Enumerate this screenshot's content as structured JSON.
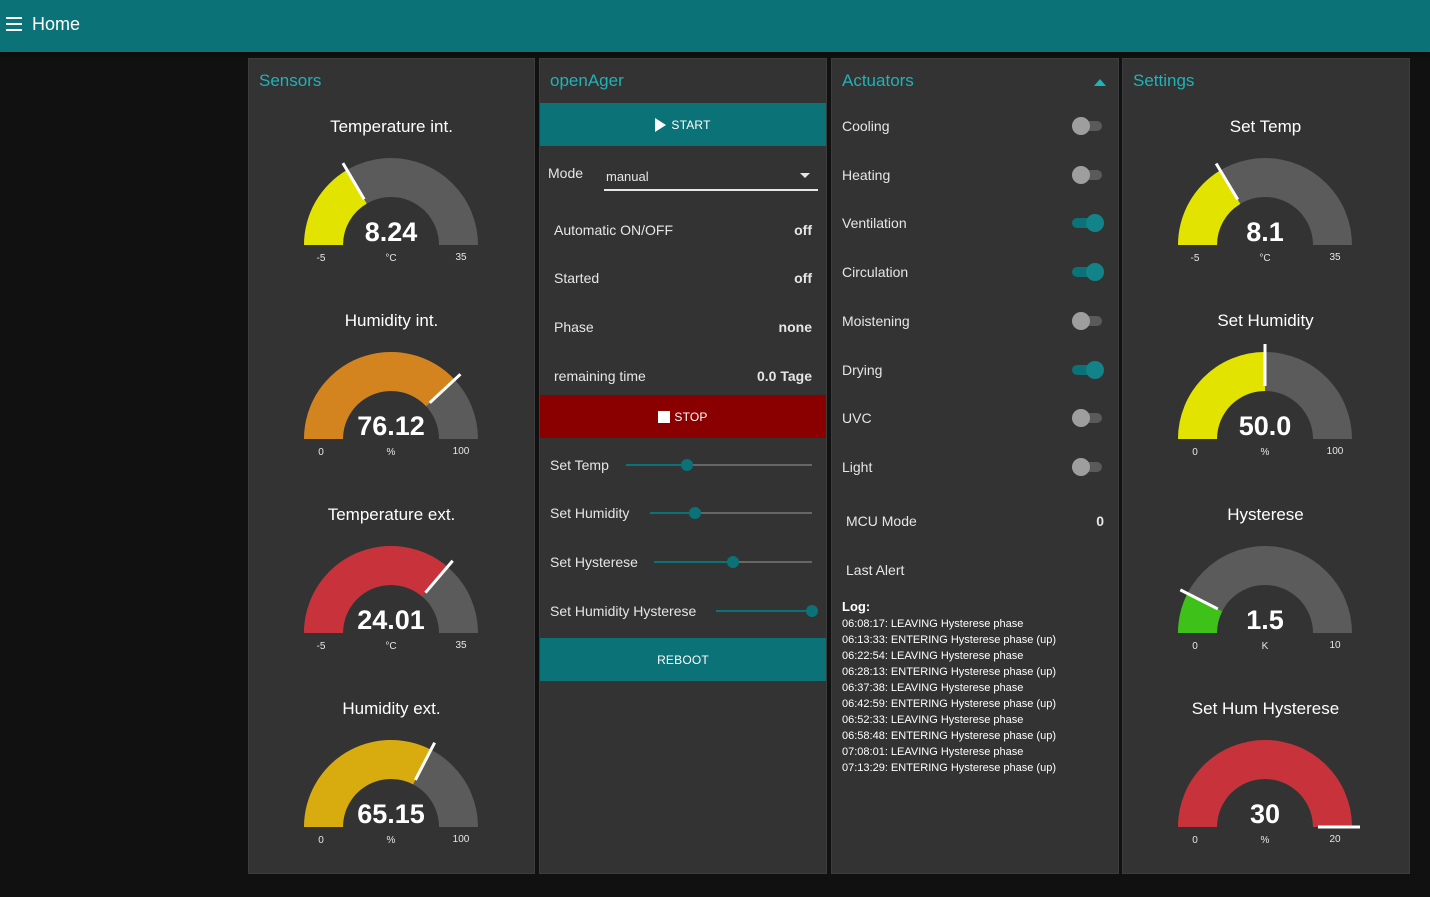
{
  "header": {
    "title": "Home"
  },
  "sensors": {
    "title": "Sensors",
    "gauges": [
      {
        "title": "Temperature int.",
        "value": "8.24",
        "unit": "°C",
        "min": "-5",
        "max": "35",
        "level": 0.331,
        "color": "#e2e400"
      },
      {
        "title": "Humidity int.",
        "value": "76.12",
        "unit": "%",
        "min": "0",
        "max": "100",
        "level": 0.761,
        "color": "#d4841e"
      },
      {
        "title": "Temperature ext.",
        "value": "24.01",
        "unit": "°C",
        "min": "-5",
        "max": "35",
        "level": 0.725,
        "color": "#c8323a"
      },
      {
        "title": "Humidity ext.",
        "value": "65.15",
        "unit": "%",
        "min": "0",
        "max": "100",
        "level": 0.652,
        "color": "#d8ac0e"
      }
    ]
  },
  "openager": {
    "title": "openAger",
    "start_label": "START",
    "mode_label": "Mode",
    "mode_value": "manual",
    "rows": [
      {
        "label": "Automatic ON/OFF",
        "value": "off"
      },
      {
        "label": "Started",
        "value": "off"
      },
      {
        "label": "Phase",
        "value": "none"
      },
      {
        "label": "remaining time",
        "value": "0.0 Tage"
      }
    ],
    "stop_label": "STOP",
    "sliders": [
      {
        "label": "Set Temp",
        "level": 0.33
      },
      {
        "label": "Set Humidity",
        "level": 0.28
      },
      {
        "label": "Set Hysterese",
        "level": 0.5
      },
      {
        "label": "Set Humidity Hysterese",
        "level": 1.0
      }
    ],
    "reboot_label": "REBOOT"
  },
  "actuators": {
    "title": "Actuators",
    "toggles": [
      {
        "label": "Cooling",
        "on": false
      },
      {
        "label": "Heating",
        "on": false
      },
      {
        "label": "Ventilation",
        "on": true
      },
      {
        "label": "Circulation",
        "on": true
      },
      {
        "label": "Moistening",
        "on": false
      },
      {
        "label": "Drying",
        "on": true
      },
      {
        "label": "UVC",
        "on": false
      },
      {
        "label": "Light",
        "on": false
      }
    ],
    "mcu_label": "MCU Mode",
    "mcu_value": "0",
    "alert_label": "Last Alert",
    "log_title": "Log:",
    "log": [
      "06:08:17: LEAVING Hysterese phase",
      "06:13:33: ENTERING Hysterese phase (up)",
      "06:22:54: LEAVING Hysterese phase",
      "06:28:13: ENTERING Hysterese phase (up)",
      "06:37:38: LEAVING Hysterese phase",
      "06:42:59: ENTERING Hysterese phase (up)",
      "06:52:33: LEAVING Hysterese phase",
      "06:58:48: ENTERING Hysterese phase (up)",
      "07:08:01: LEAVING Hysterese phase",
      "07:13:29: ENTERING Hysterese phase (up)"
    ]
  },
  "settings": {
    "title": "Settings",
    "gauges": [
      {
        "title": "Set Temp",
        "value": "8.1",
        "unit": "°C",
        "min": "-5",
        "max": "35",
        "level": 0.328,
        "color": "#e2e400"
      },
      {
        "title": "Set Humidity",
        "value": "50.0",
        "unit": "%",
        "min": "0",
        "max": "100",
        "level": 0.5,
        "color": "#e2e400"
      },
      {
        "title": "Hysterese",
        "value": "1.5",
        "unit": "K",
        "min": "0",
        "max": "10",
        "level": 0.15,
        "color": "#3ec21a"
      },
      {
        "title": "Set Hum Hysterese",
        "value": "30",
        "unit": "%",
        "min": "0",
        "max": "20",
        "level": 1.0,
        "color": "#c8323a"
      }
    ]
  }
}
